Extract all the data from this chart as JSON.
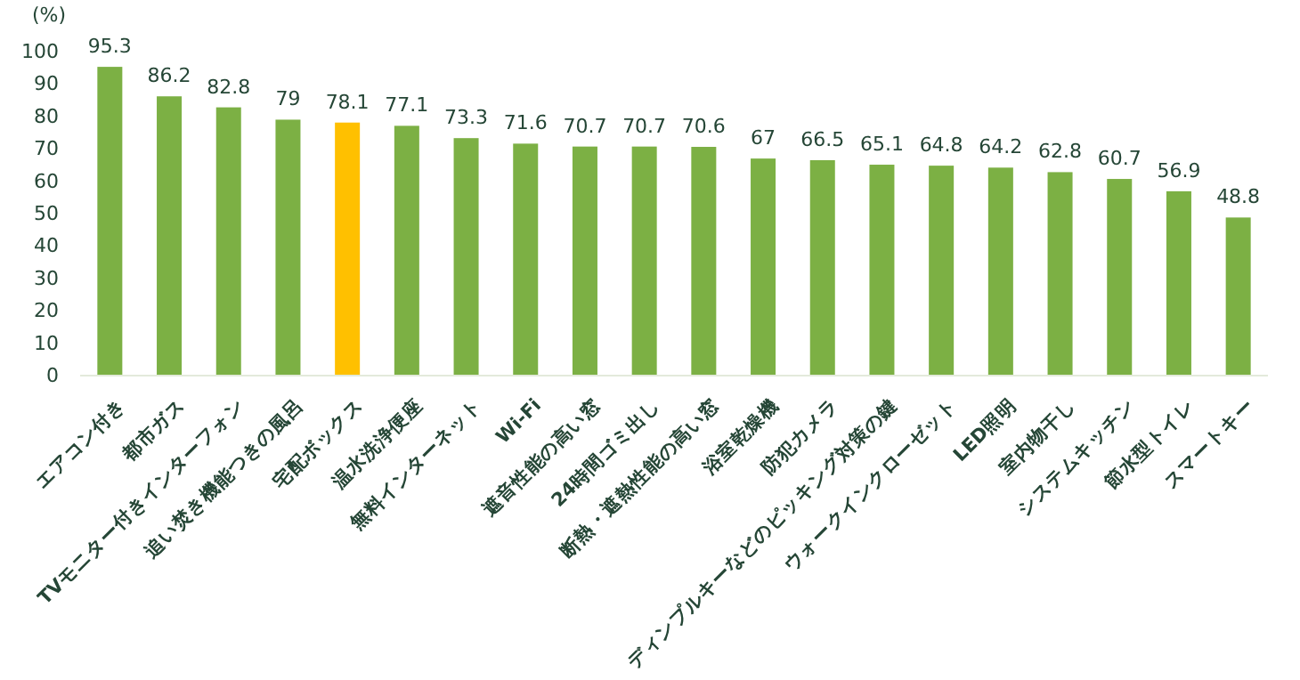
{
  "chart_data": {
    "type": "bar",
    "ylabel": "(%)",
    "categories": [
      "エアコン付き",
      "都市ガス",
      "TVモニター付きインターフォン",
      "追い焚き機能つきの風呂",
      "宅配ボックス",
      "温水洗浄便座",
      "無料インターネット",
      "Wi-Fi",
      "遮音性能の高い窓",
      "24時間ゴミ出し",
      "断熱・遮熱性能の高い窓",
      "浴室乾燥機",
      "防犯カメラ",
      "ディンプルキーなどのピッキング対策の鍵",
      "ウォークインクローゼット",
      "LED照明",
      "室内物干し",
      "システムキッチン",
      "節水型トイレ",
      "スマートキー"
    ],
    "values": [
      95.3,
      86.2,
      82.8,
      79,
      78.1,
      77.1,
      73.3,
      71.6,
      70.7,
      70.7,
      70.6,
      67,
      66.5,
      65.1,
      64.8,
      64.2,
      62.8,
      60.7,
      56.9,
      48.8
    ],
    "colors": [
      "#7cb044",
      "#7cb044",
      "#7cb044",
      "#7cb044",
      "#ffc000",
      "#7cb044",
      "#7cb044",
      "#7cb044",
      "#7cb044",
      "#7cb044",
      "#7cb044",
      "#7cb044",
      "#7cb044",
      "#7cb044",
      "#7cb044",
      "#7cb044",
      "#7cb044",
      "#7cb044",
      "#7cb044",
      "#7cb044"
    ],
    "ylim": [
      0,
      100
    ],
    "yticks": [
      0,
      10,
      20,
      30,
      40,
      50,
      60,
      70,
      80,
      90,
      100
    ],
    "data_labels": true,
    "grid": false
  }
}
